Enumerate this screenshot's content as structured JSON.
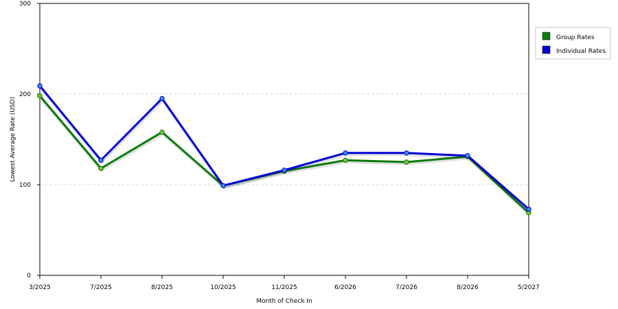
{
  "chart_data": {
    "type": "line",
    "title": "",
    "xlabel": "Month of Check In",
    "ylabel": "Lowest Average Rate (USD)",
    "categories": [
      "3/2025",
      "7/2025",
      "8/2025",
      "10/2025",
      "11/2025",
      "6/2026",
      "7/2026",
      "8/2026",
      "5/2027"
    ],
    "ylim": [
      0,
      300
    ],
    "yticks": [
      0,
      100,
      200,
      300
    ],
    "grid": "horizontal dashed",
    "legend_position": "right",
    "series": [
      {
        "name": "Group Rates",
        "color": "#0a7a0a",
        "marker_color": "#7cc23a",
        "values": [
          198,
          118,
          158,
          99,
          115,
          127,
          125,
          131,
          69
        ]
      },
      {
        "name": "Individual Rates",
        "color": "#0000d6",
        "marker_color": "#3a8ee8",
        "values": [
          209,
          127,
          195,
          99,
          116,
          135,
          135,
          132,
          73
        ]
      }
    ]
  }
}
